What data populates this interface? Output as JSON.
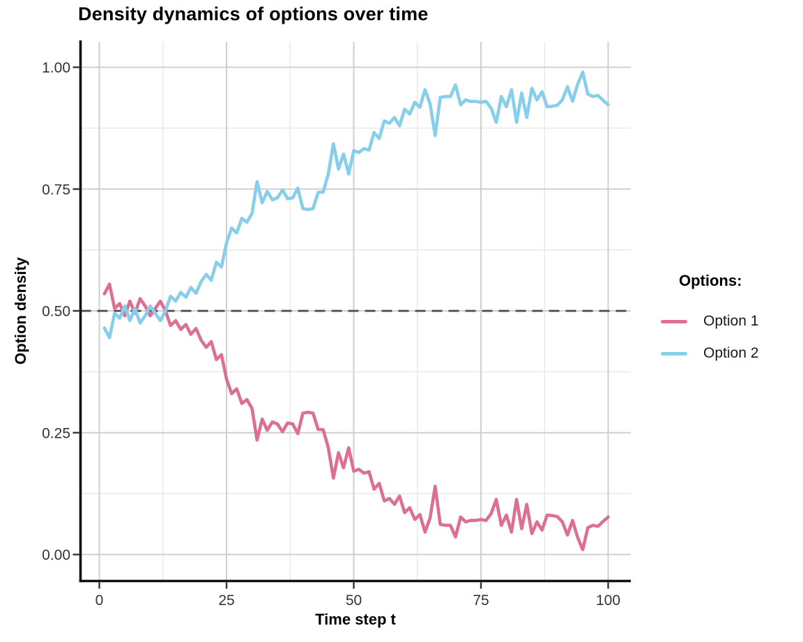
{
  "legend": {
    "title": "Options:",
    "items": [
      {
        "label": "Option 1",
        "color": "#DB7093"
      },
      {
        "label": "Option 2",
        "color": "#87CEEB"
      }
    ]
  },
  "chart_data": {
    "type": "line",
    "title": "Density dynamics of options over time",
    "xlabel": "Time step t",
    "ylabel": "Option density",
    "xlim": [
      0,
      100
    ],
    "ylim": [
      0,
      1
    ],
    "legend_position": "right",
    "grid": {
      "major": "#CFCFCF",
      "minor": "#E4E4E4",
      "x_minor": [
        12.5,
        37.5,
        62.5,
        87.5
      ],
      "y_minor": [
        0.125,
        0.375,
        0.625,
        0.875
      ]
    },
    "x_ticks": {
      "values": [
        0,
        25,
        50,
        75,
        100
      ],
      "labels": [
        "0",
        "25",
        "50",
        "75",
        "100"
      ]
    },
    "y_ticks": {
      "values": [
        0,
        0.25,
        0.5,
        0.75,
        1
      ],
      "labels": [
        "0.00",
        "0.25",
        "0.50",
        "0.75",
        "1.00"
      ]
    },
    "reference_line": {
      "y": 0.5,
      "style": "dashed",
      "color": "#4A4A4A"
    },
    "x": [
      1,
      2,
      3,
      4,
      5,
      6,
      7,
      8,
      9,
      10,
      11,
      12,
      13,
      14,
      15,
      16,
      17,
      18,
      19,
      20,
      21,
      22,
      23,
      24,
      25,
      26,
      27,
      28,
      29,
      30,
      31,
      32,
      33,
      34,
      35,
      36,
      37,
      38,
      39,
      40,
      41,
      42,
      43,
      44,
      45,
      46,
      47,
      48,
      49,
      50,
      51,
      52,
      53,
      54,
      55,
      56,
      57,
      58,
      59,
      60,
      61,
      62,
      63,
      64,
      65,
      66,
      67,
      68,
      69,
      70,
      71,
      72,
      73,
      74,
      75,
      76,
      77,
      78,
      79,
      80,
      81,
      82,
      83,
      84,
      85,
      86,
      87,
      88,
      89,
      90,
      91,
      92,
      93,
      94,
      95,
      96,
      97,
      98,
      99,
      100
    ],
    "series": [
      {
        "name": "Option 1",
        "color": "#DB7093",
        "values": [
          0.535,
          0.555,
          0.505,
          0.515,
          0.49,
          0.52,
          0.495,
          0.525,
          0.51,
          0.49,
          0.505,
          0.52,
          0.5,
          0.47,
          0.48,
          0.462,
          0.472,
          0.452,
          0.464,
          0.44,
          0.425,
          0.437,
          0.4,
          0.41,
          0.36,
          0.33,
          0.34,
          0.31,
          0.318,
          0.3,
          0.235,
          0.278,
          0.255,
          0.272,
          0.268,
          0.252,
          0.27,
          0.268,
          0.248,
          0.29,
          0.292,
          0.29,
          0.257,
          0.256,
          0.219,
          0.157,
          0.209,
          0.178,
          0.219,
          0.171,
          0.175,
          0.167,
          0.17,
          0.134,
          0.146,
          0.11,
          0.115,
          0.103,
          0.12,
          0.086,
          0.096,
          0.072,
          0.082,
          0.046,
          0.075,
          0.14,
          0.062,
          0.06,
          0.06,
          0.036,
          0.077,
          0.067,
          0.07,
          0.07,
          0.072,
          0.07,
          0.084,
          0.113,
          0.06,
          0.081,
          0.046,
          0.113,
          0.053,
          0.103,
          0.043,
          0.067,
          0.05,
          0.081,
          0.08,
          0.078,
          0.067,
          0.04,
          0.07,
          0.035,
          0.01,
          0.055,
          0.06,
          0.058,
          0.068,
          0.077
        ]
      },
      {
        "name": "Option 2",
        "color": "#87CEEB",
        "values": [
          0.465,
          0.445,
          0.495,
          0.485,
          0.51,
          0.48,
          0.505,
          0.475,
          0.49,
          0.51,
          0.495,
          0.48,
          0.5,
          0.53,
          0.52,
          0.538,
          0.528,
          0.548,
          0.536,
          0.56,
          0.575,
          0.563,
          0.6,
          0.59,
          0.64,
          0.67,
          0.66,
          0.69,
          0.682,
          0.7,
          0.765,
          0.722,
          0.745,
          0.728,
          0.732,
          0.748,
          0.73,
          0.732,
          0.752,
          0.71,
          0.708,
          0.71,
          0.743,
          0.744,
          0.781,
          0.843,
          0.791,
          0.822,
          0.781,
          0.829,
          0.825,
          0.833,
          0.83,
          0.866,
          0.854,
          0.89,
          0.885,
          0.897,
          0.88,
          0.914,
          0.904,
          0.928,
          0.918,
          0.954,
          0.925,
          0.86,
          0.938,
          0.94,
          0.94,
          0.964,
          0.923,
          0.933,
          0.93,
          0.93,
          0.928,
          0.93,
          0.916,
          0.887,
          0.94,
          0.919,
          0.954,
          0.887,
          0.947,
          0.897,
          0.957,
          0.933,
          0.95,
          0.919,
          0.92,
          0.922,
          0.933,
          0.96,
          0.93,
          0.965,
          0.99,
          0.945,
          0.94,
          0.942,
          0.932,
          0.923
        ]
      }
    ]
  }
}
